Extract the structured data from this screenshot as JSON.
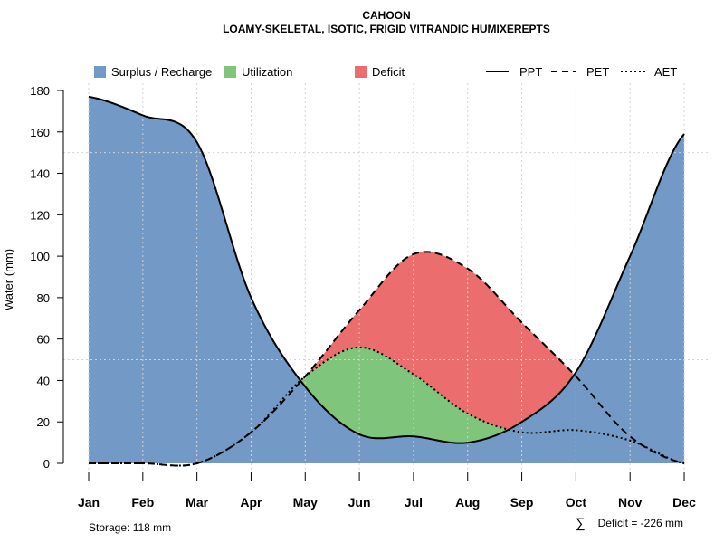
{
  "chart_data": {
    "type": "area",
    "title": "CAHOON",
    "subtitle": "LOAMY-SKELETAL, ISOTIC, FRIGID VITRANDIC HUMIXEREPTS",
    "xlabel": "",
    "ylabel": "Water (mm)",
    "ylim": [
      0,
      180
    ],
    "y_ticks": [
      0,
      20,
      40,
      60,
      80,
      100,
      120,
      140,
      160,
      180
    ],
    "categories": [
      "Jan",
      "Feb",
      "Mar",
      "Apr",
      "May",
      "Jun",
      "Jul",
      "Aug",
      "Sep",
      "Oct",
      "Nov",
      "Dec"
    ],
    "grid": true,
    "series": [
      {
        "name": "PPT",
        "style": "solid",
        "values": [
          177,
          168,
          155,
          80,
          37,
          14,
          13,
          10,
          20,
          44,
          100,
          159
        ]
      },
      {
        "name": "PET",
        "style": "dashed",
        "values": [
          0,
          0,
          0,
          15,
          42,
          74,
          101,
          94,
          68,
          42,
          13,
          0
        ]
      },
      {
        "name": "AET",
        "style": "dotted",
        "values": [
          0,
          0,
          0,
          15,
          42,
          56,
          43,
          24,
          15,
          16,
          11,
          0
        ]
      }
    ],
    "areas": [
      {
        "name": "Surplus / Recharge",
        "color": "#7399c6"
      },
      {
        "name": "Utilization",
        "color": "#7fc57c"
      },
      {
        "name": "Deficit",
        "color": "#ec6d6d"
      }
    ],
    "legend": {
      "position": "top",
      "items": [
        {
          "label": "Surplus / Recharge",
          "kind": "fill",
          "color": "#7399c6"
        },
        {
          "label": "Utilization",
          "kind": "fill",
          "color": "#7fc57c"
        },
        {
          "label": "Deficit",
          "kind": "fill",
          "color": "#ec6d6d"
        },
        {
          "label": "PPT",
          "kind": "line",
          "dash": "solid"
        },
        {
          "label": "PET",
          "kind": "line",
          "dash": "dashed"
        },
        {
          "label": "AET",
          "kind": "line",
          "dash": "dotted"
        }
      ]
    },
    "annotations": {
      "storage": "Storage: 118 mm",
      "deficit_symbol": "∑",
      "deficit": "Deficit = -226 mm"
    }
  }
}
